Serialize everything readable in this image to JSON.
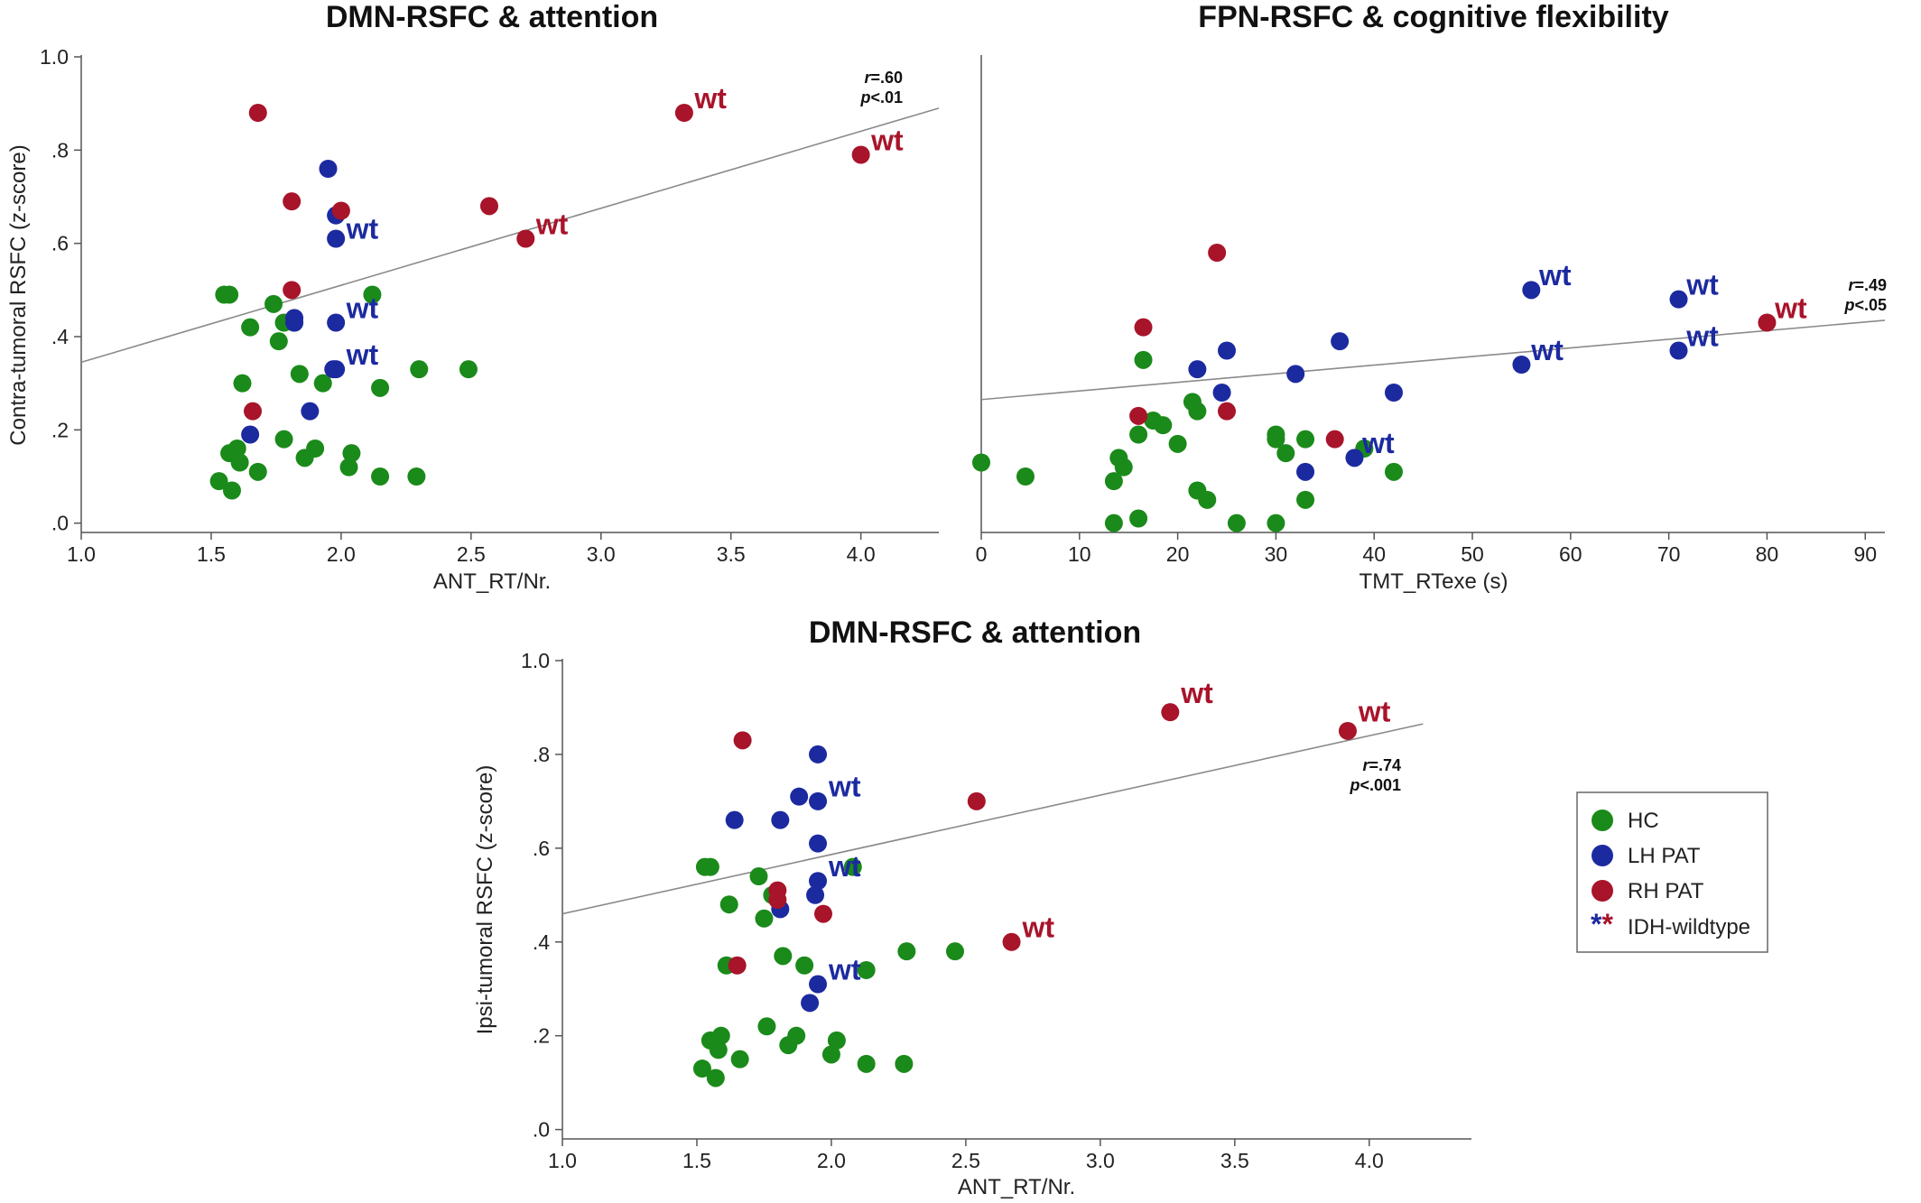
{
  "chart_data": [
    {
      "type": "scatter",
      "title": "DMN-RSFC & attention",
      "xlabel": "ANT_RT/Nr.",
      "ylabel": "Contra-tumoral RSFC (z-score)",
      "xlim": [
        1.0,
        4.3
      ],
      "ylim": [
        -0.02,
        1.0
      ],
      "xticks": [
        "1.0",
        "1.5",
        "2.0",
        "2.5",
        "3.0",
        "3.5",
        "4.0"
      ],
      "yticks": [
        ".0",
        ".2",
        ".4",
        ".6",
        ".8",
        "1.0"
      ],
      "annotation": {
        "r": "=.60",
        "p": "<.01"
      },
      "fit_line": [
        [
          1.0,
          0.345
        ],
        [
          4.3,
          0.89
        ]
      ],
      "series": [
        {
          "name": "HC",
          "points": [
            [
              1.55,
              0.49
            ],
            [
              1.57,
              0.49
            ],
            [
              1.74,
              0.47
            ],
            [
              1.78,
              0.43
            ],
            [
              1.82,
              0.43
            ],
            [
              1.65,
              0.42
            ],
            [
              1.76,
              0.39
            ],
            [
              2.12,
              0.49
            ],
            [
              1.62,
              0.3
            ],
            [
              1.84,
              0.32
            ],
            [
              1.93,
              0.3
            ],
            [
              2.15,
              0.29
            ],
            [
              2.3,
              0.33
            ],
            [
              2.49,
              0.33
            ],
            [
              1.57,
              0.15
            ],
            [
              1.6,
              0.16
            ],
            [
              1.61,
              0.13
            ],
            [
              1.78,
              0.18
            ],
            [
              1.9,
              0.16
            ],
            [
              1.86,
              0.14
            ],
            [
              2.04,
              0.15
            ],
            [
              2.03,
              0.12
            ],
            [
              1.68,
              0.11
            ],
            [
              2.15,
              0.1
            ],
            [
              2.29,
              0.1
            ],
            [
              1.53,
              0.09
            ],
            [
              1.58,
              0.07
            ]
          ]
        },
        {
          "name": "LH PAT",
          "points": [
            [
              1.95,
              0.76
            ],
            [
              1.98,
              0.66
            ],
            [
              1.98,
              0.61
            ],
            [
              1.82,
              0.44
            ],
            [
              1.82,
              0.43
            ],
            [
              1.98,
              0.43
            ],
            [
              1.98,
              0.33
            ],
            [
              1.97,
              0.33
            ],
            [
              1.88,
              0.24
            ],
            [
              1.65,
              0.19
            ]
          ]
        },
        {
          "name": "RH PAT",
          "points": [
            [
              1.68,
              0.88
            ],
            [
              1.81,
              0.69
            ],
            [
              2.0,
              0.67
            ],
            [
              2.57,
              0.68
            ],
            [
              1.81,
              0.5
            ],
            [
              1.66,
              0.24
            ],
            [
              3.32,
              0.88
            ],
            [
              4.0,
              0.79
            ],
            [
              2.71,
              0.61
            ]
          ]
        }
      ],
      "wt_labels": [
        {
          "text": "wt",
          "series": "LH PAT",
          "x": 2.02,
          "y": 0.61
        },
        {
          "text": "wt",
          "series": "LH PAT",
          "x": 2.02,
          "y": 0.44
        },
        {
          "text": "wt",
          "series": "LH PAT",
          "x": 2.02,
          "y": 0.34
        },
        {
          "text": "wt",
          "series": "RH PAT",
          "x": 3.36,
          "y": 0.89
        },
        {
          "text": "wt",
          "series": "RH PAT",
          "x": 4.04,
          "y": 0.8
        },
        {
          "text": "wt",
          "series": "RH PAT",
          "x": 2.75,
          "y": 0.62
        }
      ]
    },
    {
      "type": "scatter",
      "title": "FPN-RSFC & cognitive flexibility",
      "xlabel": "TMT_RTexe (s)",
      "ylabel": "",
      "xlim": [
        0,
        92
      ],
      "ylim": [
        -0.02,
        1.0
      ],
      "xticks": [
        "0",
        "10",
        "20",
        "30",
        "40",
        "50",
        "60",
        "70",
        "80",
        "90"
      ],
      "annotation": {
        "r": "=.49",
        "p": "<.05"
      },
      "fit_line": [
        [
          0,
          0.265
        ],
        [
          92,
          0.435
        ]
      ],
      "series": [
        {
          "name": "HC",
          "points": [
            [
              0,
              0.13
            ],
            [
              4.5,
              0.1
            ],
            [
              16.5,
              0.35
            ],
            [
              14,
              0.14
            ],
            [
              13.5,
              0.09
            ],
            [
              14.5,
              0.12
            ],
            [
              16,
              0.01
            ],
            [
              13.5,
              0.0
            ],
            [
              16,
              0.19
            ],
            [
              17.5,
              0.22
            ],
            [
              18.5,
              0.21
            ],
            [
              20,
              0.17
            ],
            [
              21.5,
              0.26
            ],
            [
              22,
              0.24
            ],
            [
              22,
              0.07
            ],
            [
              23,
              0.05
            ],
            [
              26,
              0.0
            ],
            [
              30,
              0.0
            ],
            [
              30,
              0.19
            ],
            [
              30,
              0.18
            ],
            [
              31,
              0.15
            ],
            [
              33,
              0.05
            ],
            [
              33,
              0.18
            ],
            [
              39,
              0.16
            ],
            [
              42,
              0.11
            ]
          ]
        },
        {
          "name": "LH PAT",
          "points": [
            [
              22,
              0.33
            ],
            [
              25,
              0.37
            ],
            [
              24.5,
              0.28
            ],
            [
              32,
              0.32
            ],
            [
              36.5,
              0.39
            ],
            [
              33,
              0.11
            ],
            [
              38,
              0.14
            ],
            [
              42,
              0.28
            ],
            [
              56,
              0.5
            ],
            [
              55,
              0.34
            ],
            [
              71,
              0.48
            ],
            [
              71,
              0.37
            ]
          ]
        },
        {
          "name": "RH PAT",
          "points": [
            [
              16.5,
              0.42
            ],
            [
              16,
              0.23
            ],
            [
              25,
              0.24
            ],
            [
              24,
              0.58
            ],
            [
              36,
              0.18
            ],
            [
              80,
              0.43
            ]
          ]
        }
      ],
      "wt_labels": [
        {
          "text": "wt",
          "series": "LH PAT",
          "x": 56.8,
          "y": 0.51
        },
        {
          "text": "wt",
          "series": "LH PAT",
          "x": 71.8,
          "y": 0.49
        },
        {
          "text": "wt",
          "series": "LH PAT",
          "x": 56.0,
          "y": 0.35
        },
        {
          "text": "wt",
          "series": "LH PAT",
          "x": 71.8,
          "y": 0.38
        },
        {
          "text": "wt",
          "series": "LH PAT",
          "x": 38.8,
          "y": 0.15
        },
        {
          "text": "wt",
          "series": "RH PAT",
          "x": 80.8,
          "y": 0.44
        }
      ]
    },
    {
      "type": "scatter",
      "title": "DMN-RSFC & attention",
      "xlabel": "ANT_RT/Nr.",
      "ylabel": "Ipsi-tumoral RSFC (z-score)",
      "xlim": [
        1.0,
        4.38
      ],
      "ylim": [
        -0.02,
        1.0
      ],
      "xticks": [
        "1.0",
        "1.5",
        "2.0",
        "2.5",
        "3.0",
        "3.5",
        "4.0"
      ],
      "yticks": [
        ".0",
        ".2",
        ".4",
        ".6",
        ".8",
        "1.0"
      ],
      "annotation": {
        "r": "=.74",
        "p": "<.001"
      },
      "fit_line": [
        [
          1.0,
          0.46
        ],
        [
          4.2,
          0.865
        ]
      ],
      "series": [
        {
          "name": "HC",
          "points": [
            [
              1.53,
              0.56
            ],
            [
              1.55,
              0.56
            ],
            [
              1.73,
              0.54
            ],
            [
              1.78,
              0.5
            ],
            [
              1.62,
              0.48
            ],
            [
              1.75,
              0.45
            ],
            [
              2.08,
              0.56
            ],
            [
              1.82,
              0.37
            ],
            [
              1.9,
              0.35
            ],
            [
              1.61,
              0.35
            ],
            [
              2.13,
              0.34
            ],
            [
              2.28,
              0.38
            ],
            [
              2.46,
              0.38
            ],
            [
              1.55,
              0.19
            ],
            [
              1.58,
              0.17
            ],
            [
              1.59,
              0.2
            ],
            [
              1.76,
              0.22
            ],
            [
              1.84,
              0.18
            ],
            [
              1.87,
              0.2
            ],
            [
              2.02,
              0.19
            ],
            [
              2.0,
              0.16
            ],
            [
              1.66,
              0.15
            ],
            [
              2.13,
              0.14
            ],
            [
              2.27,
              0.14
            ],
            [
              1.52,
              0.13
            ],
            [
              1.57,
              0.11
            ]
          ]
        },
        {
          "name": "LH PAT",
          "points": [
            [
              1.95,
              0.8
            ],
            [
              1.95,
              0.7
            ],
            [
              1.88,
              0.71
            ],
            [
              1.81,
              0.66
            ],
            [
              1.64,
              0.66
            ],
            [
              1.95,
              0.61
            ],
            [
              1.95,
              0.53
            ],
            [
              1.94,
              0.5
            ],
            [
              1.81,
              0.47
            ],
            [
              1.95,
              0.31
            ],
            [
              1.92,
              0.27
            ]
          ]
        },
        {
          "name": "RH PAT",
          "points": [
            [
              1.67,
              0.83
            ],
            [
              2.54,
              0.7
            ],
            [
              1.8,
              0.51
            ],
            [
              1.8,
              0.49
            ],
            [
              1.97,
              0.46
            ],
            [
              1.65,
              0.35
            ],
            [
              2.67,
              0.4
            ],
            [
              3.26,
              0.89
            ],
            [
              3.92,
              0.85
            ]
          ]
        }
      ],
      "wt_labels": [
        {
          "text": "wt",
          "series": "LH PAT",
          "x": 1.99,
          "y": 0.71
        },
        {
          "text": "wt",
          "series": "LH PAT",
          "x": 1.99,
          "y": 0.54
        },
        {
          "text": "wt",
          "series": "LH PAT",
          "x": 1.99,
          "y": 0.32
        },
        {
          "text": "wt",
          "series": "RH PAT",
          "x": 3.3,
          "y": 0.91
        },
        {
          "text": "wt",
          "series": "RH PAT",
          "x": 3.96,
          "y": 0.87
        },
        {
          "text": "wt",
          "series": "RH PAT",
          "x": 2.71,
          "y": 0.41
        }
      ]
    }
  ],
  "legend": {
    "placement": "right",
    "items": [
      {
        "label": "HC",
        "color": "#1a8a1a"
      },
      {
        "label": "LH PAT",
        "color": "#1c2aa0"
      },
      {
        "label": "RH PAT",
        "color": "#a8142a"
      }
    ],
    "wildtype_symbol": "**",
    "wildtype_label": "IDH-wildtype"
  },
  "colors": {
    "HC": "#1a8a1a",
    "LH PAT": "#1c2aa0",
    "RH PAT": "#a8142a",
    "fit_line": "#8a8a8a",
    "axis": "#555555"
  }
}
